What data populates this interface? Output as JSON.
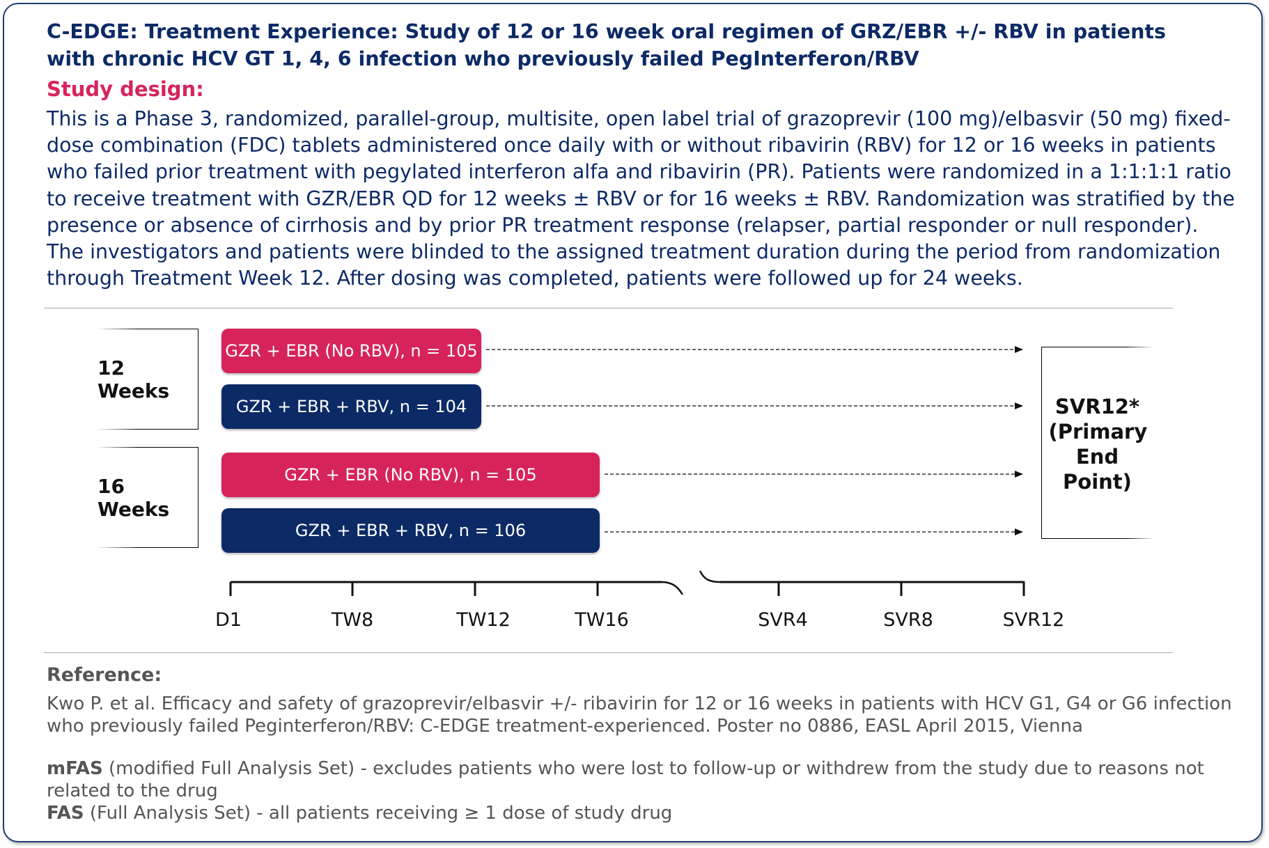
{
  "title": "C-EDGE: Treatment Experience: Study of 12 or 16 week oral regimen of GRZ/EBR +/- RBV in patients with chronic HCV GT 1, 4, 6 infection who previously failed PegInterferon/RBV",
  "study_design": {
    "heading": "Study design:",
    "paragraph_1": "This is a Phase 3, randomized, parallel-group, multisite, open label trial of grazoprevir (100 mg)/elbasvir (50 mg) fixed-dose combination (FDC) tablets administered once daily with or without ribavirin (RBV) for 12 or 16 weeks in patients who failed prior treatment with pegylated  interferon alfa and ribavirin (PR). Patients were randomized in a 1:1:1:1 ratio to receive treatment with GZR/EBR QD for 12 weeks ± RBV or for 16 weeks ± RBV. Randomization was stratified by the presence or absence of cirrhosis and by prior PR treatment  response (relapser, partial responder or null responder).",
    "paragraph_2": "The investigators and patients were  blinded to the assigned treatment duration during the period from randomization through Treatment  Week 12. After dosing was completed, patients were followed up for 24 weeks."
  },
  "diagram": {
    "groups": [
      {
        "label": "12 Weeks"
      },
      {
        "label": "16 Weeks"
      }
    ],
    "arms": [
      {
        "label": "GZR + EBR (No RBV), n = 105",
        "color": "#d6245b",
        "duration_weeks": 12
      },
      {
        "label": "GZR + EBR + RBV, n = 104",
        "color": "#0c2a66",
        "duration_weeks": 12
      },
      {
        "label": "GZR + EBR (No RBV), n = 105",
        "color": "#d6245b",
        "duration_weeks": 16
      },
      {
        "label": "GZR + EBR + RBV, n = 106",
        "color": "#0c2a66",
        "duration_weeks": 16
      }
    ],
    "endpoint": {
      "line_1": "SVR12*",
      "line_2": "(Primary",
      "line_3": "End",
      "line_4": "Point)"
    },
    "timeline_ticks": [
      "D1",
      "TW8",
      "TW12",
      "TW16",
      "SVR4",
      "SVR8",
      "SVR12"
    ]
  },
  "reference": {
    "heading": "Reference:",
    "citation": "Kwo P. et al. Efficacy and safety of grazoprevir/elbasvir +/- ribavirin for 12 or 16 weeks in patients with HCV G1, G4 or G6 infection who previously failed Peginterferon/RBV: C-EDGE treatment-experienced. Poster no 0886, EASL April 2015, Vienna"
  },
  "definitions": [
    {
      "term": "mFAS",
      "text": " (modified Full Analysis Set) - excludes patients who were lost to follow-up or withdrew from the study due to reasons not related to the drug"
    },
    {
      "term": "FAS",
      "text": " (Full Analysis Set) - all patients receiving ≥ 1 dose of study drug"
    }
  ]
}
